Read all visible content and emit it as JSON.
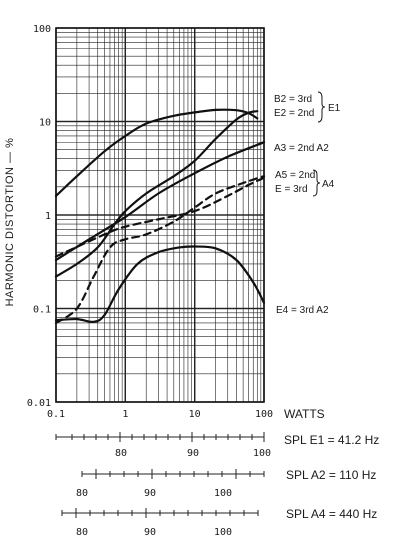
{
  "chart_data": {
    "type": "line",
    "title": "",
    "xlabel": "WATTS",
    "ylabel": "HARMONIC DISTORTION — %",
    "xscale": "log",
    "yscale": "log",
    "xlim": [
      0.1,
      100
    ],
    "ylim": [
      0.01,
      100
    ],
    "grid": true,
    "x_ticks": [
      "0.1",
      "1",
      "10",
      "100"
    ],
    "y_ticks": [
      "0.01",
      "0.1",
      "1",
      "10",
      "100"
    ],
    "series": [
      {
        "style": "solid",
        "points": [
          [
            0.1,
            1.6
          ],
          [
            0.2,
            2.6
          ],
          [
            0.5,
            4.8
          ],
          [
            1,
            7
          ],
          [
            2,
            9.5
          ],
          [
            5,
            11.5
          ],
          [
            10,
            12.5
          ],
          [
            20,
            13.3
          ],
          [
            40,
            13.2
          ],
          [
            60,
            12.3
          ],
          [
            80,
            10.8
          ]
        ]
      },
      {
        "style": "solid",
        "points": [
          [
            0.1,
            0.22
          ],
          [
            0.2,
            0.3
          ],
          [
            0.4,
            0.45
          ],
          [
            0.7,
            0.8
          ],
          [
            1,
            1.1
          ],
          [
            2,
            1.7
          ],
          [
            5,
            2.6
          ],
          [
            10,
            3.8
          ],
          [
            20,
            6.5
          ],
          [
            40,
            10.5
          ],
          [
            60,
            12.4
          ],
          [
            80,
            12.9
          ]
        ]
      },
      {
        "style": "solid",
        "points": [
          [
            0.1,
            0.33
          ],
          [
            0.3,
            0.55
          ],
          [
            1,
            0.95
          ],
          [
            3,
            1.7
          ],
          [
            10,
            2.8
          ],
          [
            30,
            4.2
          ],
          [
            100,
            6
          ]
        ]
      },
      {
        "style": "dashed",
        "points": [
          [
            0.1,
            0.07
          ],
          [
            0.2,
            0.1
          ],
          [
            0.35,
            0.22
          ],
          [
            0.6,
            0.45
          ],
          [
            1,
            0.55
          ],
          [
            2,
            0.62
          ],
          [
            5,
            0.85
          ],
          [
            10,
            1.2
          ],
          [
            20,
            1.7
          ],
          [
            50,
            2.2
          ],
          [
            100,
            2.6
          ]
        ]
      },
      {
        "style": "dashed",
        "points": [
          [
            0.1,
            0.36
          ],
          [
            0.5,
            0.62
          ],
          [
            1,
            0.75
          ],
          [
            3,
            0.9
          ],
          [
            10,
            1.1
          ],
          [
            30,
            1.6
          ],
          [
            60,
            2.1
          ],
          [
            100,
            2.5
          ]
        ]
      },
      {
        "style": "solid",
        "points": [
          [
            0.1,
            0.075
          ],
          [
            0.2,
            0.077
          ],
          [
            0.35,
            0.072
          ],
          [
            0.5,
            0.085
          ],
          [
            0.8,
            0.16
          ],
          [
            1.5,
            0.3
          ],
          [
            3,
            0.4
          ],
          [
            6,
            0.45
          ],
          [
            10,
            0.46
          ],
          [
            20,
            0.44
          ],
          [
            40,
            0.33
          ],
          [
            70,
            0.19
          ],
          [
            100,
            0.115
          ]
        ]
      }
    ],
    "curve_labels": [
      "B2 = 3rd",
      "E2 = 2nd",
      "E1",
      "A3 = 2nd A2",
      "A5 = 2nd",
      "E = 3rd",
      "A4",
      "E4 = 3rd A2"
    ],
    "spl_scales": [
      {
        "label": "SPL  E1 = 41.2 Hz",
        "ticks": [
          "80",
          "90",
          "100"
        ]
      },
      {
        "label": "SPL  A2 = 110 Hz",
        "ticks": [
          "80",
          "90",
          "100"
        ]
      },
      {
        "label": "SPL  A4 = 440 Hz",
        "ticks": [
          "80",
          "90",
          "100"
        ]
      }
    ]
  }
}
